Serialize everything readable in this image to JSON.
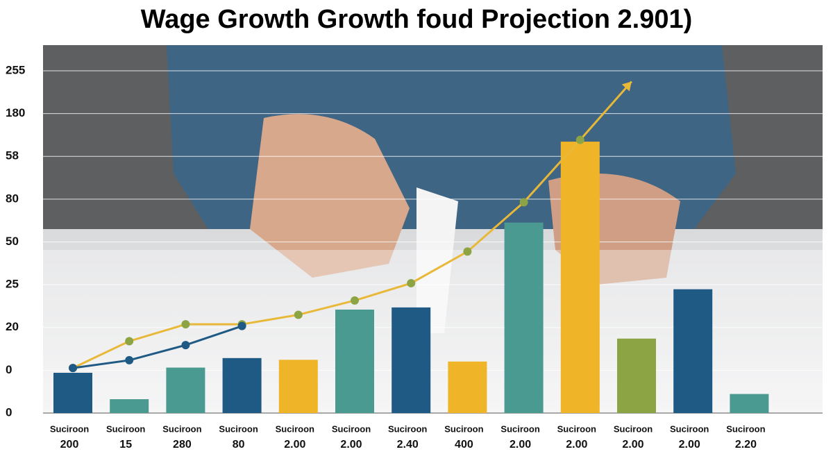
{
  "chart_data": {
    "type": "bar",
    "title": "Wage Growth Growth foud Projection 2.901)",
    "categories": [
      "Suciroon",
      "Suciroon",
      "Suciroon",
      "Suciroon",
      "Suciroon",
      "Suciroon",
      "Suciroon",
      "Suciroon",
      "Suciroon",
      "Suciroon",
      "Suciroon",
      "Suciroon",
      "Suciroon"
    ],
    "category_sublabels": [
      "200",
      "15",
      "280",
      "80",
      "2.00",
      "2.00",
      "2.40",
      "400",
      "2.00",
      "2.00",
      "2.00",
      "2.00",
      "2.20"
    ],
    "values": [
      0.93,
      0.32,
      1.05,
      1.27,
      1.23,
      2.39,
      2.44,
      1.19,
      4.4,
      6.27,
      1.72,
      2.86,
      0.44
    ],
    "colors": [
      "#1f5a85",
      "#4a9a91",
      "#4a9a91",
      "#1f5a85",
      "#f0b429",
      "#4a9a91",
      "#1f5a85",
      "#f0b429",
      "#4a9a91",
      "#f0b429",
      "#8da445",
      "#1f5a85",
      "#4a9a91"
    ],
    "y_labels": [
      "255",
      "180",
      "58",
      "80",
      "50",
      "25",
      "20",
      "0",
      "0"
    ],
    "ylim": [
      0,
      8.5
    ],
    "lines": [
      {
        "color": "#e8b838",
        "marker_color": "#8da445",
        "values": [
          1.04,
          1.66,
          2.05,
          2.05,
          2.27,
          2.6,
          3.0,
          3.73,
          4.87,
          6.31
        ],
        "arrow": true
      },
      {
        "color": "#1f5a85",
        "marker_color": "#1f5a85",
        "values": [
          1.04,
          1.22,
          1.57,
          2.01
        ],
        "arrow": false
      }
    ],
    "grid": true
  }
}
